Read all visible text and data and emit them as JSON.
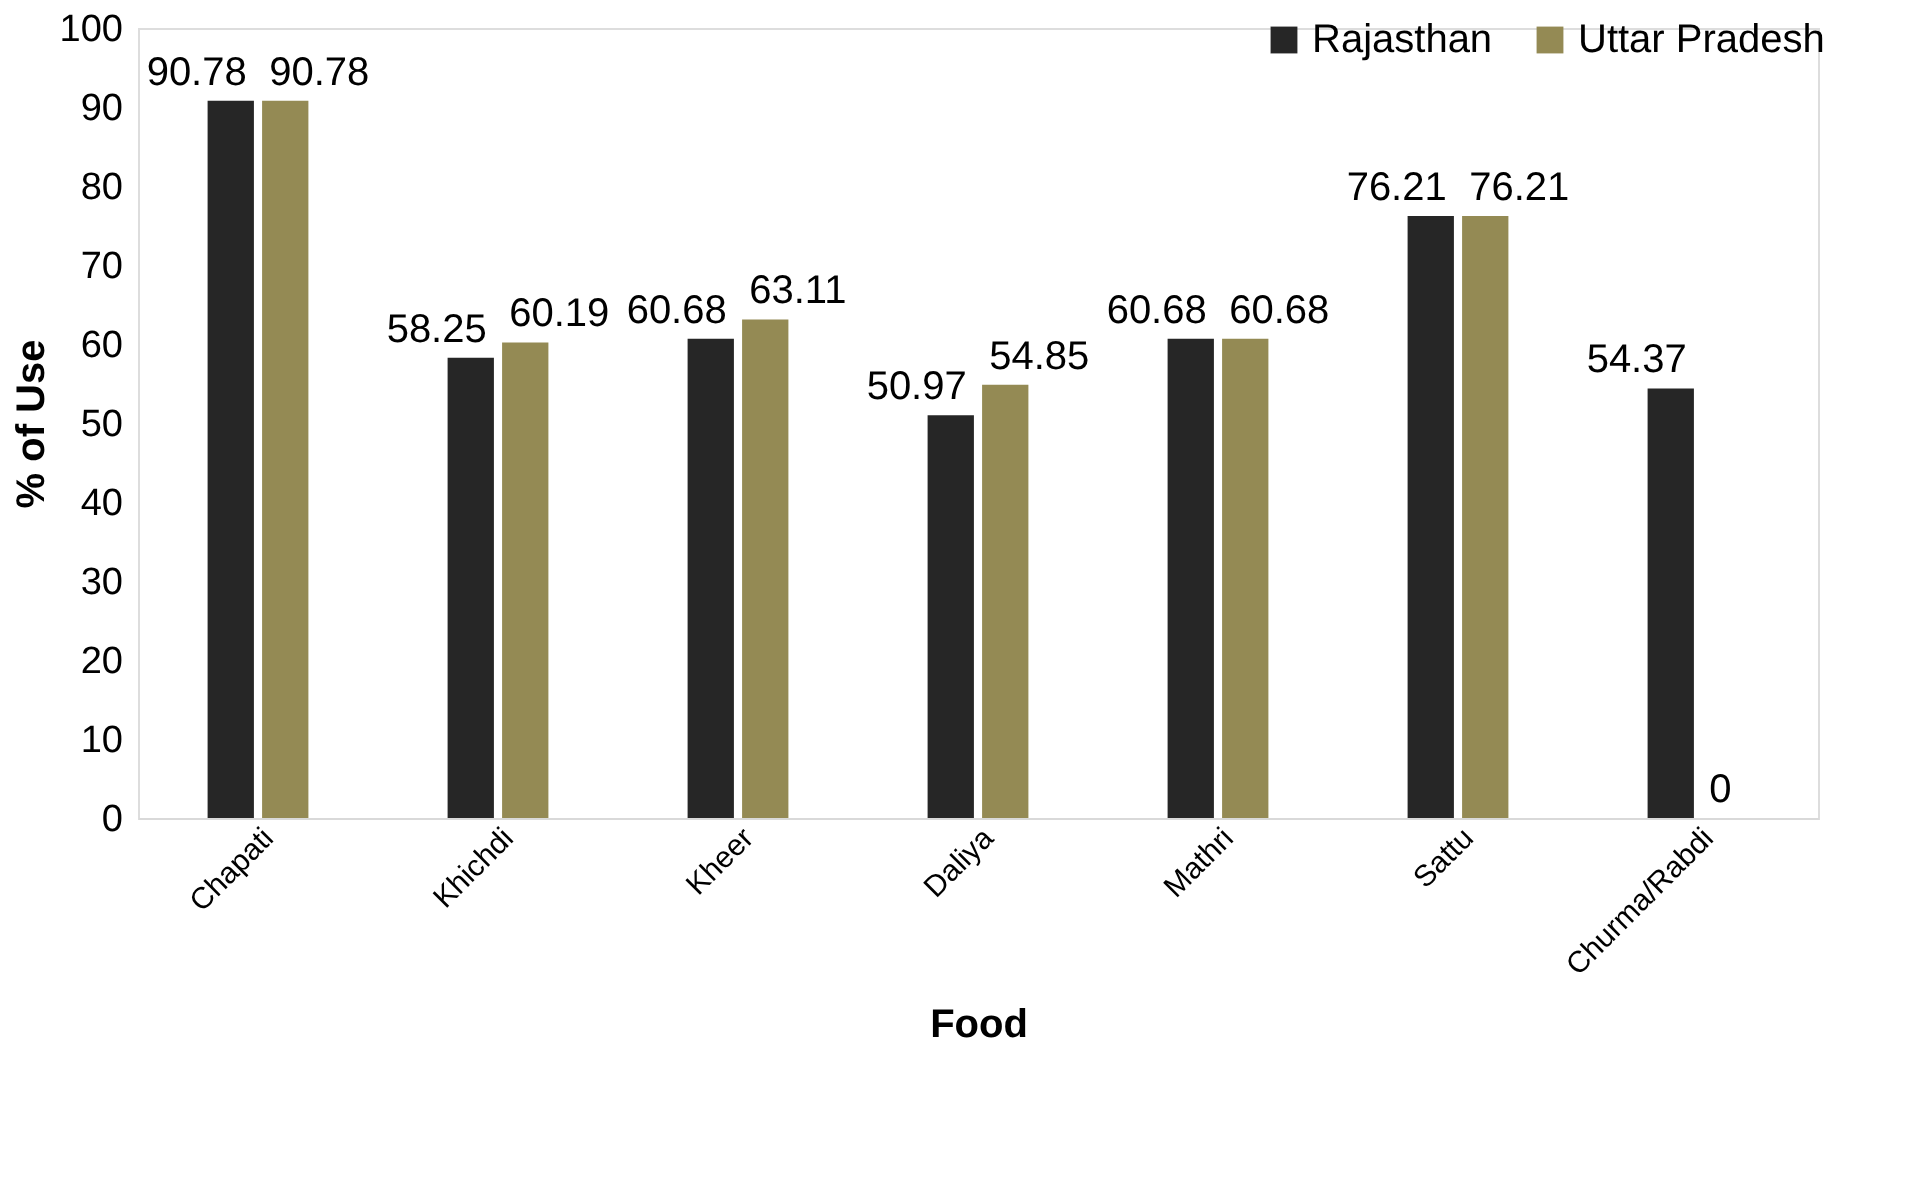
{
  "chart_data": {
    "type": "bar",
    "xlabel": "Food",
    "ylabel": "% of Use",
    "categories": [
      "Chapati",
      "Khichdi",
      "Kheer",
      "Daliya",
      "Mathri",
      "Sattu",
      "Churma/Rabdi"
    ],
    "series": [
      {
        "name": "Rajasthan",
        "color": "#262626",
        "values": [
          90.78,
          58.25,
          60.68,
          50.97,
          60.68,
          76.21,
          54.37
        ]
      },
      {
        "name": "Uttar Pradesh",
        "color": "#948a54",
        "values": [
          90.78,
          60.19,
          63.11,
          54.85,
          60.68,
          76.21,
          0
        ]
      }
    ],
    "ylim": [
      0,
      100
    ],
    "yticks": [
      0,
      10,
      20,
      30,
      40,
      50,
      60,
      70,
      80,
      90,
      100
    ],
    "data_labels": true,
    "legend": "top right",
    "grid": false
  }
}
